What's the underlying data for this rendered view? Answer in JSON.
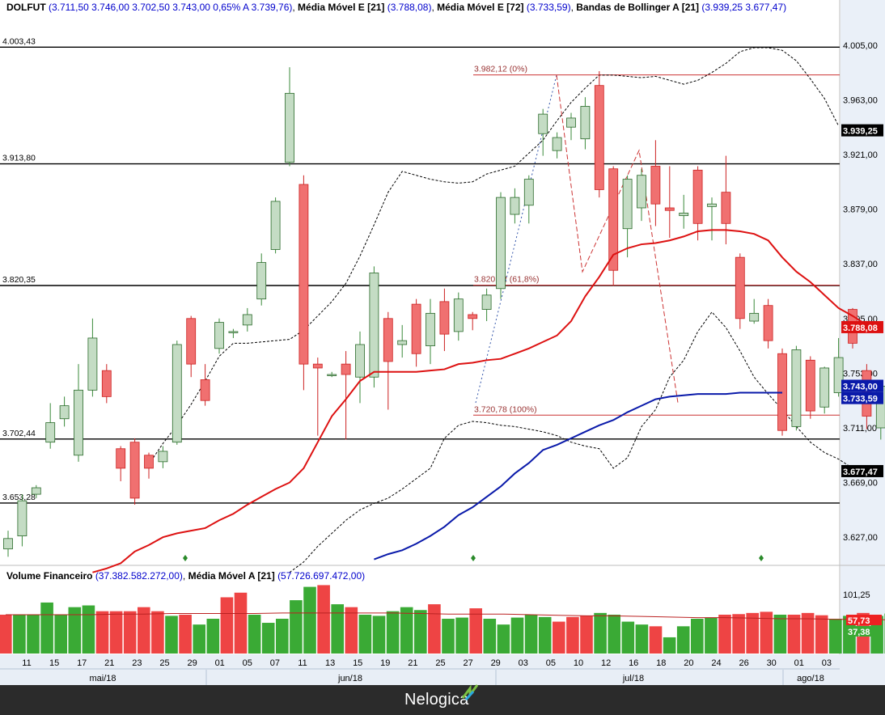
{
  "header": {
    "symbol": "DOLFUT",
    "ohlc": "(3.711,50   3.746,00   3.702,50   3.743,00   0,65%   A 3.739,76)",
    "ema21_label": "Média Móvel E [21]",
    "ema21_value": "(3.788,08)",
    "ema72_label": "Média Móvel E [72]",
    "ema72_value": "(3.733,59)",
    "boll_label": "Bandas de Bollinger A [21]",
    "boll_value": "(3.939,25   3.677,47)"
  },
  "volume_header": {
    "label": "Volume Financeiro",
    "value": "(37.382.582.272,00)",
    "ma_label": "Média Móvel A [21]",
    "ma_value": "(57.726.697.472,00)"
  },
  "footer": {
    "brand": "Nelogica"
  },
  "colors": {
    "up": "#c4dcc4",
    "down": "#f07070",
    "vol_up": "#3aaa35",
    "vol_down": "#ee4444",
    "ema21": "#dd1111",
    "ema72": "#0a1aaa",
    "hline": "#000000",
    "fib": "#cc3333"
  },
  "chart_data": {
    "type": "candlestick",
    "y_axis": {
      "min": 3606,
      "max": 4026,
      "ticks": [
        "4.005,00",
        "3.963,00",
        "3.921,00",
        "3.879,00",
        "3.837,00",
        "3.795,00",
        "3.753,00",
        "3.711,00",
        "3.669,00",
        "3.627,00"
      ],
      "tick_values": [
        4005,
        3963,
        3921,
        3879,
        3837,
        3795,
        3753,
        3711,
        3669,
        3627
      ]
    },
    "x_axis": {
      "day_labels": [
        "11",
        "15",
        "17",
        "21",
        "23",
        "25",
        "29",
        "01",
        "05",
        "07",
        "11",
        "13",
        "15",
        "19",
        "21",
        "25",
        "27",
        "29",
        "03",
        "05",
        "10",
        "12",
        "16",
        "18",
        "20",
        "24",
        "26",
        "30",
        "01",
        "03"
      ],
      "day_label_index": [
        1,
        3,
        5,
        7,
        9,
        11,
        13,
        15,
        17,
        19,
        21,
        23,
        25,
        27,
        29,
        31,
        33,
        35,
        37,
        39,
        41,
        43,
        45,
        47,
        49,
        51,
        53,
        55,
        57,
        59
      ],
      "months": [
        "mai/18",
        "jun/18",
        "jul/18",
        "ago/18"
      ],
      "month_start_index": [
        0,
        15,
        36,
        57
      ]
    },
    "horizontal_lines": [
      {
        "label": "4.003,43",
        "value": 4003.43
      },
      {
        "label": "3.913,80",
        "value": 3913.8
      },
      {
        "label": "3.820,35",
        "value": 3820.35
      },
      {
        "label": "3.702,44",
        "value": 3702.44
      },
      {
        "label": "3.653,28",
        "value": 3653.28
      }
    ],
    "fibonacci": [
      {
        "label": "3.982,12 (0%)",
        "value": 3982.12
      },
      {
        "label": "3.820,62 (61,8%)",
        "value": 3820.62
      },
      {
        "label": "3.720,78 (100%)",
        "value": 3720.78
      }
    ],
    "price_badges": [
      {
        "label": "3.939,25",
        "value": 3939.25,
        "bg": "#000000",
        "fg": "#ffffff"
      },
      {
        "label": "3.788,08",
        "value": 3788.08,
        "bg": "#dd1111",
        "fg": "#ffffff"
      },
      {
        "label": "3.743,00",
        "value": 3743.0,
        "bg": "#0a1aaa",
        "fg": "#ffffff"
      },
      {
        "label": "3.733,59",
        "value": 3733.59,
        "bg": "#0a1aaa",
        "fg": "#ffffff"
      },
      {
        "label": "3.677,47",
        "value": 3677.47,
        "bg": "#000000",
        "fg": "#ffffff"
      }
    ],
    "candles": [
      [
        3618,
        3626,
        3612,
        3632
      ],
      [
        3628,
        3655,
        3620,
        3660
      ],
      [
        3660,
        3665,
        3657,
        3667
      ],
      [
        3700,
        3715,
        3695,
        3730
      ],
      [
        3718,
        3728,
        3712,
        3735
      ],
      [
        3690,
        3740,
        3685,
        3760
      ],
      [
        3740,
        3780,
        3735,
        3795
      ],
      [
        3755,
        3735,
        3730,
        3760
      ],
      [
        3695,
        3680,
        3670,
        3697
      ],
      [
        3700,
        3657,
        3652,
        3703
      ],
      [
        3690,
        3680,
        3672,
        3692
      ],
      [
        3685,
        3693,
        3680,
        3697
      ],
      [
        3700,
        3775,
        3698,
        3778
      ],
      [
        3795,
        3760,
        3750,
        3797
      ],
      [
        3748,
        3732,
        3728,
        3760
      ],
      [
        3772,
        3792,
        3768,
        3795
      ],
      [
        3785,
        3785,
        3780,
        3787
      ],
      [
        3790,
        3798,
        3785,
        3803
      ],
      [
        3810,
        3838,
        3805,
        3845
      ],
      [
        3848,
        3885,
        3845,
        3888
      ],
      [
        3915,
        3968,
        3912,
        3988
      ],
      [
        3898,
        3760,
        3740,
        3905
      ],
      [
        3760,
        3757,
        3705,
        3765
      ],
      [
        3752,
        3752,
        3750,
        3754
      ],
      [
        3760,
        3752,
        3702,
        3770
      ],
      [
        3750,
        3775,
        3730,
        3785
      ],
      [
        3750,
        3830,
        3742,
        3835
      ],
      [
        3795,
        3762,
        3725,
        3800
      ],
      [
        3775,
        3778,
        3765,
        3790
      ],
      [
        3806,
        3768,
        3758,
        3810
      ],
      [
        3774,
        3799,
        3760,
        3810
      ],
      [
        3808,
        3783,
        3770,
        3818
      ],
      [
        3785,
        3810,
        3778,
        3815
      ],
      [
        3798,
        3795,
        3786,
        3800
      ],
      [
        3802,
        3813,
        3793,
        3818
      ],
      [
        3818,
        3888,
        3810,
        3892
      ],
      [
        3875,
        3888,
        3868,
        3895
      ],
      [
        3882,
        3902,
        3868,
        3905
      ],
      [
        3937,
        3952,
        3920,
        3956
      ],
      [
        3924,
        3934,
        3918,
        3938
      ],
      [
        3942,
        3949,
        3932,
        3953
      ],
      [
        3933,
        3958,
        3925,
        3965
      ],
      [
        3974,
        3894,
        3888,
        3985
      ],
      [
        3910,
        3832,
        3820,
        3912
      ],
      [
        3864,
        3902,
        3842,
        3905
      ],
      [
        3880,
        3905,
        3870,
        3910
      ],
      [
        3912,
        3883,
        3866,
        3932
      ],
      [
        3880,
        3878,
        3857,
        3912
      ],
      [
        3874,
        3876,
        3864,
        3890
      ],
      [
        3909,
        3868,
        3855,
        3912
      ],
      [
        3881,
        3883,
        3855,
        3888
      ],
      [
        3892,
        3868,
        3852,
        3920
      ],
      [
        3842,
        3795,
        3787,
        3845
      ],
      [
        3793,
        3799,
        3791,
        3810
      ],
      [
        3805,
        3778,
        3772,
        3810
      ],
      [
        3768,
        3709,
        3705,
        3772
      ],
      [
        3712,
        3771,
        3709,
        3774
      ],
      [
        3763,
        3724,
        3718,
        3766
      ],
      [
        3727,
        3757,
        3722,
        3758
      ],
      [
        3738,
        3765,
        3735,
        3780
      ],
      [
        3802,
        3776,
        3772,
        3803
      ],
      [
        3755,
        3720,
        3710,
        3760
      ],
      [
        3711,
        3743,
        3702,
        3746
      ]
    ],
    "ema21": [
      3600,
      3603,
      3607,
      3616,
      3621,
      3627,
      3630,
      3632,
      3634,
      3640,
      3645,
      3652,
      3658,
      3664,
      3669,
      3680,
      3700,
      3720,
      3733,
      3747,
      3754,
      3754,
      3754,
      3754,
      3755,
      3756,
      3760,
      3761,
      3763,
      3764,
      3768,
      3772,
      3777,
      3782,
      3793,
      3812,
      3827,
      3844,
      3849,
      3852,
      3853,
      3855,
      3858,
      3862,
      3863,
      3863,
      3862,
      3860,
      3855,
      3842,
      3831,
      3823,
      3813,
      3803,
      3797,
      3790
    ],
    "ema21_start": 6,
    "ema72": [
      3610,
      3614,
      3617,
      3622,
      3628,
      3635,
      3644,
      3650,
      3658,
      3666,
      3676,
      3684,
      3694,
      3698,
      3703,
      3708,
      3713,
      3717,
      3723,
      3728,
      3733,
      3735,
      3736,
      3737,
      3737,
      3737,
      3738,
      3738,
      3738,
      3738
    ],
    "ema72_start": 26,
    "boll_upper": [
      3683,
      3699,
      3713,
      3729,
      3747,
      3766,
      3776,
      3776,
      3777,
      3778,
      3779,
      3786,
      3797,
      3808,
      3822,
      3843,
      3867,
      3892,
      3908,
      3905,
      3902,
      3900,
      3899,
      3900,
      3906,
      3909,
      3912,
      3922,
      3932,
      3947,
      3961,
      3972,
      3982,
      3982,
      3981,
      3980,
      3981,
      3978,
      3975,
      3978,
      3984,
      3991,
      4000,
      4003,
      4003,
      4001,
      3993,
      3979,
      3964,
      3943
    ],
    "boll_upper_start": 0,
    "boll_lower": [
      3600,
      3608,
      3620,
      3630,
      3640,
      3648,
      3653,
      3657,
      3664,
      3672,
      3680,
      3703,
      3713,
      3716,
      3715,
      3713,
      3712,
      3710,
      3708,
      3705,
      3700,
      3697,
      3695,
      3680,
      3688,
      3712,
      3725,
      3750,
      3763,
      3785,
      3800,
      3788,
      3770,
      3750,
      3737,
      3725,
      3712,
      3700,
      3692,
      3687,
      3680,
      3677
    ],
    "boll_lower_start": 20,
    "volume": {
      "axis_ticks": [
        "101,25",
        "57,73",
        "37,38"
      ],
      "ma_value": 57.73,
      "last_value": 37.38,
      "bars": [
        67,
        67,
        67,
        88,
        67,
        80,
        83,
        73,
        73,
        73,
        80,
        73,
        65,
        67,
        50,
        60,
        97,
        105,
        67,
        53,
        60,
        92,
        115,
        118,
        85,
        80,
        67,
        65,
        73,
        80,
        75,
        85,
        60,
        62,
        78,
        60,
        50,
        62,
        67,
        63,
        55,
        63,
        65,
        70,
        67,
        55,
        50,
        47,
        28,
        47,
        60,
        62,
        67,
        68,
        70,
        72,
        67,
        67,
        70,
        66,
        60,
        65,
        70,
        65,
        69,
        60,
        60,
        60,
        65,
        62,
        60,
        48,
        64,
        37
      ],
      "bar_dir": [
        -1,
        1,
        1,
        1,
        1,
        1,
        1,
        -1,
        -1,
        -1,
        -1,
        -1,
        1,
        -1,
        1,
        1,
        -1,
        -1,
        1,
        1,
        1,
        1,
        1,
        -1,
        1,
        -1,
        1,
        1,
        1,
        1,
        1,
        -1,
        1,
        1,
        -1,
        1,
        1,
        1,
        1,
        1,
        -1,
        -1,
        -1,
        1,
        1,
        1,
        1,
        -1,
        1,
        1,
        1,
        1,
        -1,
        -1,
        -1,
        -1,
        1,
        -1,
        -1,
        -1,
        1,
        1,
        -1,
        1,
        1,
        1,
        -1,
        1,
        1,
        1,
        -1,
        -1,
        -1,
        1
      ],
      "ma": [
        67,
        67,
        67,
        67,
        68,
        68,
        69,
        69,
        69,
        69,
        70,
        70,
        70,
        70,
        70,
        69,
        68,
        68,
        68,
        67,
        66,
        65,
        65,
        64,
        63,
        62,
        62,
        61,
        60,
        60,
        59,
        59,
        58,
        58,
        57,
        57,
        57
      ]
    }
  }
}
